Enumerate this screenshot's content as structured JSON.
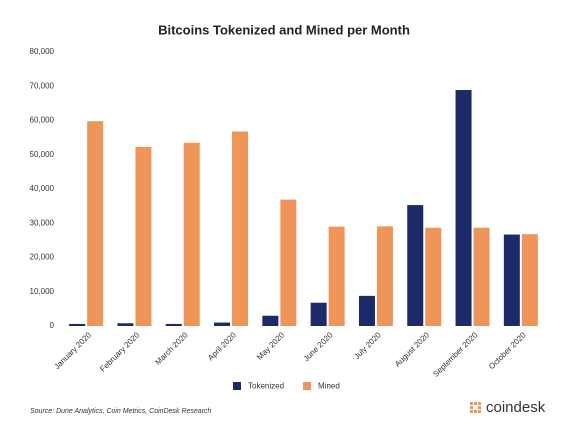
{
  "chart_data": {
    "type": "bar",
    "title": "Bitcoins Tokenized and Mined per Month",
    "categories": [
      "January 2020",
      "February 2020",
      "March 2020",
      "April 2020",
      "May 2020",
      "June 2020",
      "July 2020",
      "August 2020",
      "September 2020",
      "October 2020"
    ],
    "series": [
      {
        "name": "Tokenized",
        "color": "#1b2a68",
        "values": [
          600,
          800,
          600,
          1000,
          3000,
          6800,
          8800,
          35300,
          68900,
          26700
        ]
      },
      {
        "name": "Mined",
        "color": "#f0955a",
        "values": [
          59800,
          52300,
          53500,
          56800,
          36900,
          29000,
          29100,
          28700,
          28700,
          26800
        ]
      }
    ],
    "ylim": [
      0,
      80000
    ],
    "yticks": [
      0,
      {
        "value": 10000,
        "label": "10,000"
      },
      {
        "value": 20000,
        "label": "20,000"
      },
      {
        "value": 30000,
        "label": "30,000"
      },
      {
        "value": 40000,
        "label": "40,000"
      },
      {
        "value": 50000,
        "label": "50,000"
      },
      {
        "value": 60000,
        "label": "60,000"
      },
      {
        "value": 70000,
        "label": "70,000"
      },
      {
        "value": 80000,
        "label": "80,000"
      }
    ],
    "grid": false,
    "source": "Source: Dune Analytics, Coin Metrics, CoinDesk Research",
    "logo": "coindesk"
  }
}
